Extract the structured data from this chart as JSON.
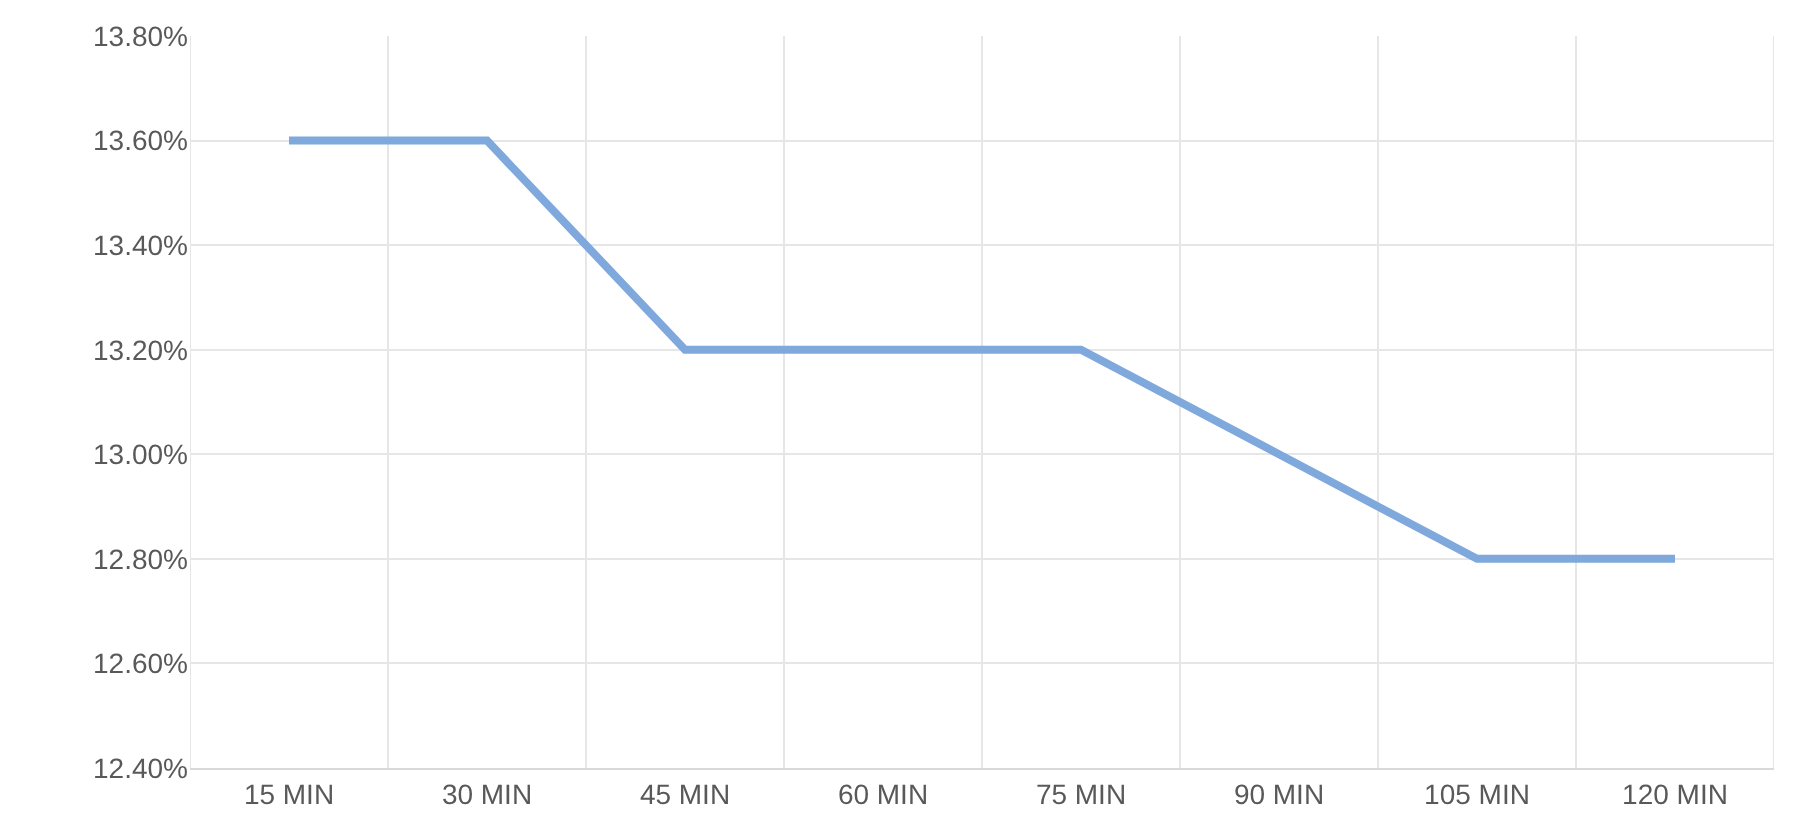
{
  "chart_data": {
    "type": "line",
    "categories": [
      "15 MIN",
      "30 MIN",
      "45 MIN",
      "60 MIN",
      "75 MIN",
      "90 MIN",
      "105 MIN",
      "120 MIN"
    ],
    "series": [
      {
        "color": "#7fa9dc",
        "values": [
          13.6,
          13.6,
          13.2,
          13.2,
          13.2,
          13.0,
          12.8,
          12.8
        ]
      }
    ],
    "ylim": [
      12.4,
      13.8
    ],
    "yticks": [
      {
        "value": 12.4,
        "label": "12.40%"
      },
      {
        "value": 12.6,
        "label": "12.60%"
      },
      {
        "value": 12.8,
        "label": "12.80%"
      },
      {
        "value": 13.0,
        "label": "13.00%"
      },
      {
        "value": 13.2,
        "label": "13.20%"
      },
      {
        "value": 13.4,
        "label": "13.40%"
      },
      {
        "value": 13.6,
        "label": "13.60%"
      },
      {
        "value": 13.8,
        "label": "13.80%"
      }
    ],
    "grid": true,
    "legend": false,
    "marker": "none",
    "line_style": "solid"
  }
}
